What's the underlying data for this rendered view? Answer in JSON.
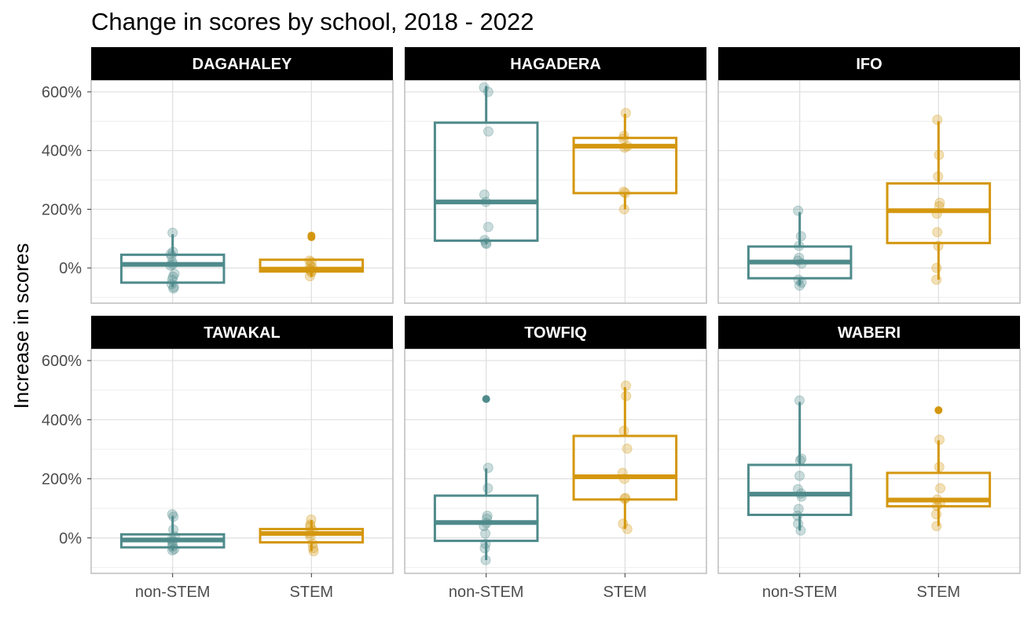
{
  "chart_data": {
    "type": "box",
    "title": "Change in scores by school, 2018 - 2022",
    "ylabel": "Increase in scores",
    "xlabel": "",
    "categories": [
      "non-STEM",
      "STEM"
    ],
    "ylim": [
      -120,
      640
    ],
    "yticks": [
      0,
      200,
      400,
      600
    ],
    "ytick_labels": [
      "0%",
      "200%",
      "400%",
      "600%"
    ],
    "grid": true,
    "colors": {
      "non-STEM": "#4f8a8b",
      "STEM": "#d4970f"
    },
    "panels": [
      {
        "school": "DAGAHALEY",
        "groups": [
          {
            "category": "non-STEM",
            "q1": -50,
            "median": 12,
            "q3": 45,
            "whisker_low": -65,
            "whisker_high": 115,
            "points": [
              120,
              55,
              48,
              40,
              20,
              12,
              8,
              -20,
              -30,
              -40,
              -55,
              -65,
              -70
            ],
            "outliers": []
          },
          {
            "category": "STEM",
            "q1": -12,
            "median": -4,
            "q3": 28,
            "whisker_low": -30,
            "whisker_high": 28,
            "points": [
              25,
              20,
              8,
              2,
              -5,
              -10,
              -15,
              -28
            ],
            "outliers": [
              110,
              105
            ]
          }
        ]
      },
      {
        "school": "HAGADERA",
        "groups": [
          {
            "category": "non-STEM",
            "q1": 93,
            "median": 225,
            "q3": 495,
            "whisker_low": 83,
            "whisker_high": 620,
            "points": [
              615,
              600,
              465,
              250,
              225,
              140,
              95,
              85,
              82
            ],
            "outliers": []
          },
          {
            "category": "STEM",
            "q1": 255,
            "median": 415,
            "q3": 443,
            "whisker_low": 200,
            "whisker_high": 525,
            "points": [
              528,
              450,
              440,
              415,
              410,
              260,
              255,
              200
            ],
            "outliers": []
          }
        ]
      },
      {
        "school": "IFO",
        "groups": [
          {
            "category": "non-STEM",
            "q1": -35,
            "median": 20,
            "q3": 73,
            "whisker_low": -60,
            "whisker_high": 190,
            "points": [
              195,
              108,
              75,
              35,
              25,
              15,
              -40,
              -50,
              -60
            ],
            "outliers": []
          },
          {
            "category": "STEM",
            "q1": 85,
            "median": 195,
            "q3": 288,
            "whisker_low": -40,
            "whisker_high": 500,
            "points": [
              505,
              385,
              312,
              222,
              210,
              185,
              122,
              75,
              0,
              -40
            ],
            "outliers": []
          }
        ]
      },
      {
        "school": "TAWAKAL",
        "groups": [
          {
            "category": "non-STEM",
            "q1": -32,
            "median": -7,
            "q3": 12,
            "whisker_low": -42,
            "whisker_high": 75,
            "points": [
              80,
              72,
              28,
              5,
              -5,
              -12,
              -20,
              -30,
              -38,
              -42
            ],
            "outliers": []
          },
          {
            "category": "STEM",
            "q1": -15,
            "median": 15,
            "q3": 30,
            "whisker_low": -45,
            "whisker_high": 60,
            "points": [
              62,
              45,
              38,
              25,
              15,
              5,
              -20,
              -35,
              -45
            ],
            "outliers": []
          }
        ]
      },
      {
        "school": "TOWFIQ",
        "groups": [
          {
            "category": "non-STEM",
            "q1": -10,
            "median": 52,
            "q3": 143,
            "whisker_low": -75,
            "whisker_high": 235,
            "points": [
              237,
              168,
              75,
              65,
              50,
              40,
              15,
              -20,
              -35,
              -75
            ],
            "outliers": [
              470
            ]
          },
          {
            "category": "STEM",
            "q1": 130,
            "median": 207,
            "q3": 345,
            "whisker_low": 30,
            "whisker_high": 510,
            "points": [
              515,
              480,
              362,
              302,
              220,
              200,
              135,
              132,
              48,
              30
            ],
            "outliers": []
          }
        ]
      },
      {
        "school": "WABERI",
        "groups": [
          {
            "category": "non-STEM",
            "q1": 78,
            "median": 148,
            "q3": 247,
            "whisker_low": 25,
            "whisker_high": 460,
            "points": [
              465,
              268,
              262,
              210,
              165,
              150,
              140,
              98,
              75,
              48,
              25
            ],
            "outliers": []
          },
          {
            "category": "STEM",
            "q1": 107,
            "median": 128,
            "q3": 220,
            "whisker_low": 40,
            "whisker_high": 330,
            "points": [
              332,
              240,
              168,
              130,
              118,
              108,
              80,
              40
            ],
            "outliers": [
              432
            ]
          }
        ]
      }
    ]
  }
}
